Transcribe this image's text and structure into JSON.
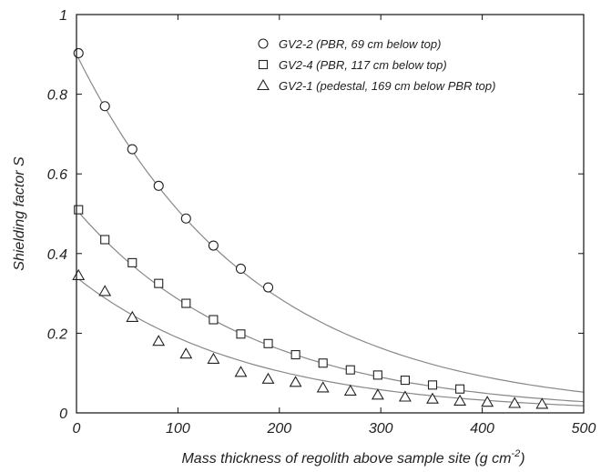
{
  "chart_data": {
    "type": "scatter",
    "xlabel": "Mass thickness of regolith above sample site (g cm",
    "xlabel_sup": "-2",
    "xlabel_tail": ")",
    "ylabel": "Shielding factor S",
    "xlim": [
      0,
      500
    ],
    "ylim": [
      0,
      1
    ],
    "xticks": [
      0,
      100,
      200,
      300,
      400,
      500
    ],
    "yticks": [
      0,
      0.2,
      0.4,
      0.6,
      0.8,
      1
    ],
    "xtick_labels": [
      "0",
      "100",
      "200",
      "300",
      "400",
      "500"
    ],
    "ytick_labels": [
      "0",
      "0.2",
      "0.4",
      "0.6",
      "0.8",
      "1"
    ],
    "grid": false,
    "legend_position": "top-right",
    "series": [
      {
        "name": "GV2-2 (PBR, 69 cm below top)",
        "marker": "circle",
        "x": [
          2,
          28,
          55,
          81,
          108,
          135,
          162,
          189
        ],
        "y": [
          0.903,
          0.77,
          0.662,
          0.57,
          0.488,
          0.42,
          0.362,
          0.315
        ],
        "fit": {
          "a": 0.9,
          "b": 0.0057
        }
      },
      {
        "name": "GV2-4 (PBR, 117 cm below top)",
        "marker": "square",
        "x": [
          2,
          28,
          55,
          81,
          108,
          135,
          162,
          189,
          216,
          243,
          270,
          297,
          324,
          351,
          378
        ],
        "y": [
          0.51,
          0.435,
          0.377,
          0.325,
          0.275,
          0.234,
          0.198,
          0.174,
          0.146,
          0.125,
          0.108,
          0.095,
          0.082,
          0.07,
          0.06
        ],
        "fit": {
          "a": 0.51,
          "b": 0.0058
        }
      },
      {
        "name": "GV2-1 (pedestal, 169 cm below PBR top)",
        "marker": "triangle",
        "x": [
          2,
          28,
          55,
          81,
          108,
          135,
          162,
          189,
          216,
          243,
          270,
          297,
          324,
          351,
          378,
          405,
          432,
          459
        ],
        "y": [
          0.345,
          0.305,
          0.24,
          0.18,
          0.148,
          0.135,
          0.102,
          0.085,
          0.077,
          0.063,
          0.055,
          0.045,
          0.04,
          0.035,
          0.03,
          0.027,
          0.024,
          0.022
        ],
        "fit": {
          "a": 0.34,
          "b": 0.0059
        }
      }
    ]
  },
  "colors": {
    "axis": "#111111",
    "fit_line": "#888888",
    "marker_stroke": "#222222"
  }
}
